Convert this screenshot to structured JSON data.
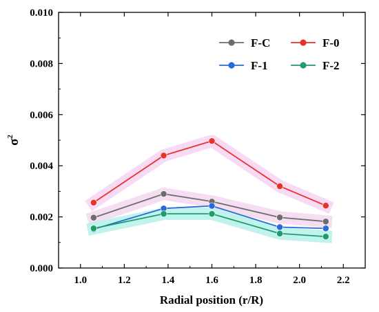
{
  "chart_data": {
    "type": "line",
    "xlabel": "Radial position (r/R)",
    "ylabel": "σ",
    "ylabel_sup": "2",
    "xlim": [
      0.9,
      2.3
    ],
    "ylim": [
      0.0,
      0.01
    ],
    "x_ticks": [
      "1.0",
      "1.2",
      "1.4",
      "1.6",
      "1.8",
      "2.0",
      "2.2"
    ],
    "y_ticks": [
      "0.000",
      "0.002",
      "0.004",
      "0.006",
      "0.008",
      "0.010"
    ],
    "x": [
      1.06,
      1.38,
      1.6,
      1.91,
      2.12
    ],
    "grid": false,
    "legend_position": "top-right",
    "series": [
      {
        "name": "F-C",
        "color": "#6d6d6d",
        "values": [
          0.00197,
          0.0029,
          0.0026,
          0.00198,
          0.00182
        ]
      },
      {
        "name": "F-0",
        "color": "#e8332b",
        "values": [
          0.00256,
          0.0044,
          0.00497,
          0.0032,
          0.00244
        ]
      },
      {
        "name": "F-1",
        "color": "#2a6ad8",
        "values": [
          0.00152,
          0.00233,
          0.00243,
          0.0016,
          0.00155
        ]
      },
      {
        "name": "F-2",
        "color": "#1f9c6a",
        "values": [
          0.00155,
          0.00212,
          0.00212,
          0.00135,
          0.00123
        ]
      }
    ]
  }
}
